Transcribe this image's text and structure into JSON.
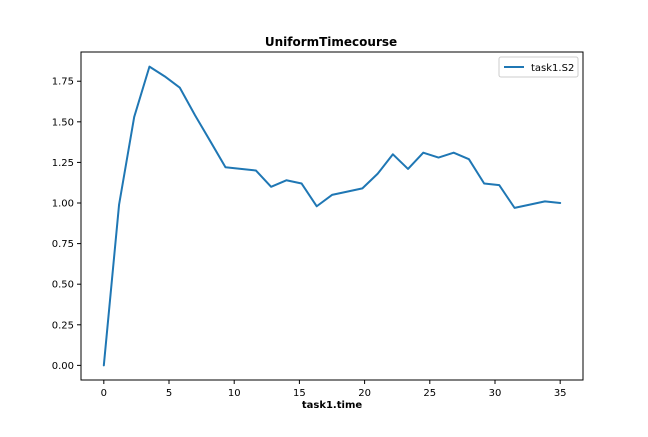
{
  "chart_data": {
    "type": "line",
    "title": "UniformTimecourse",
    "xlabel": "task1.time",
    "ylabel": "",
    "xlim": [
      -1.75,
      36.75
    ],
    "ylim": [
      -0.09,
      1.93
    ],
    "xticks": [
      0,
      5,
      10,
      15,
      20,
      25,
      30,
      35
    ],
    "xtick_labels": [
      "0",
      "5",
      "10",
      "15",
      "20",
      "25",
      "30",
      "35"
    ],
    "yticks": [
      0.0,
      0.25,
      0.5,
      0.75,
      1.0,
      1.25,
      1.5,
      1.75
    ],
    "ytick_labels": [
      "0.00",
      "0.25",
      "0.50",
      "0.75",
      "1.00",
      "1.25",
      "1.50",
      "1.75"
    ],
    "grid": false,
    "legend_position": "top-right",
    "series": [
      {
        "name": "task1.S2",
        "color": "#1f77b4",
        "x": [
          0,
          1.17,
          2.33,
          3.5,
          4.67,
          5.83,
          7,
          8.17,
          9.33,
          10.5,
          11.67,
          12.83,
          14,
          15.17,
          16.33,
          17.5,
          18.67,
          19.83,
          21,
          22.17,
          23.33,
          24.5,
          25.67,
          26.83,
          28,
          29.17,
          30.33,
          31.5,
          32.67,
          33.83,
          35
        ],
        "y": [
          0.0,
          0.99,
          1.53,
          1.84,
          1.78,
          1.71,
          1.54,
          1.38,
          1.22,
          1.21,
          1.2,
          1.1,
          1.14,
          1.12,
          0.98,
          1.05,
          1.07,
          1.09,
          1.18,
          1.3,
          1.21,
          1.31,
          1.28,
          1.31,
          1.27,
          1.12,
          1.11,
          0.97,
          0.99,
          1.01,
          1.0
        ]
      }
    ]
  }
}
